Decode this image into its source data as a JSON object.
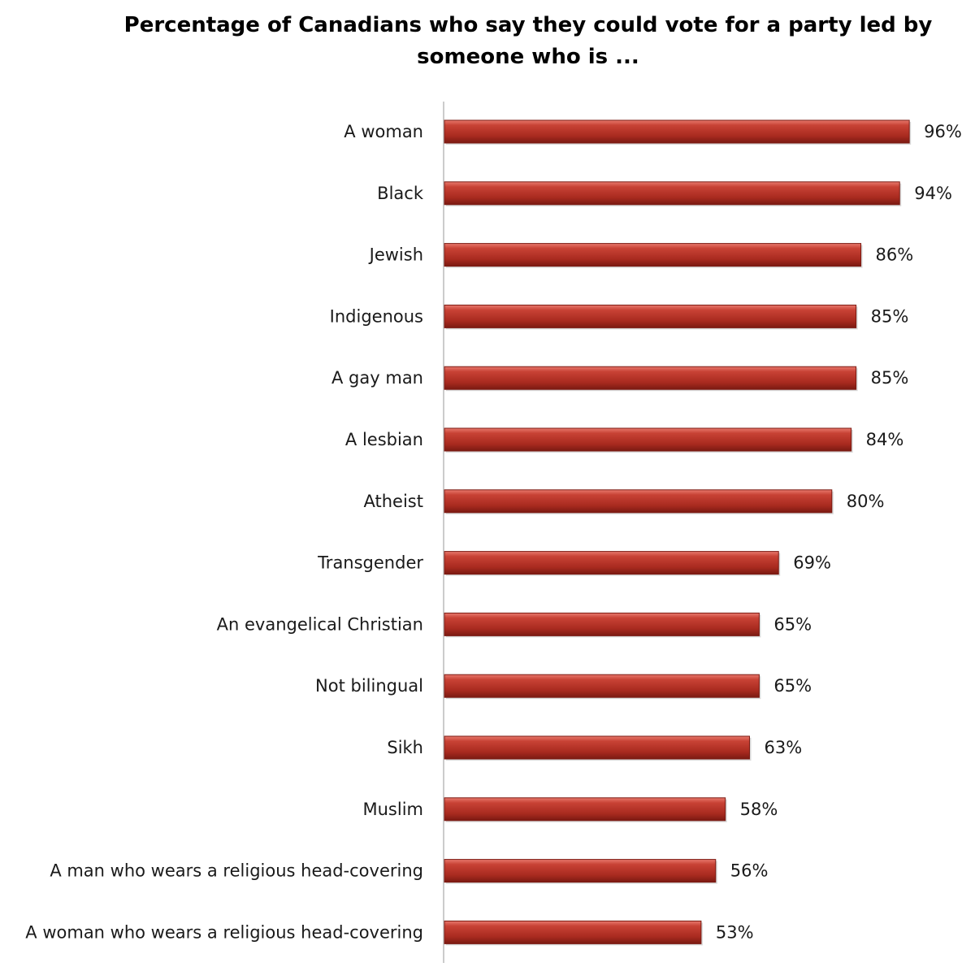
{
  "chart_data": {
    "type": "bar",
    "orientation": "horizontal",
    "title": "Percentage of Canadians who say they could vote for a party led by someone who is ...",
    "categories": [
      "A woman",
      "Black",
      "Jewish",
      "Indigenous",
      "A gay man",
      "A lesbian",
      "Atheist",
      "Transgender",
      "An evangelical Christian",
      "Not bilingual",
      "Sikh",
      "Muslim",
      "A man who wears a religious head-covering",
      "A woman who wears a religious head-covering"
    ],
    "values": [
      96,
      94,
      86,
      85,
      85,
      84,
      80,
      69,
      65,
      65,
      63,
      58,
      56,
      53
    ],
    "value_labels": [
      "96%",
      "94%",
      "86%",
      "85%",
      "85%",
      "84%",
      "80%",
      "69%",
      "65%",
      "65%",
      "63%",
      "58%",
      "56%",
      "53%"
    ],
    "xlim": [
      0,
      100
    ],
    "grid": false,
    "legend": "none",
    "bar_color": "#c0392b",
    "bar_color_dark": "#7b1a12",
    "axis_color": "#cccccc"
  }
}
